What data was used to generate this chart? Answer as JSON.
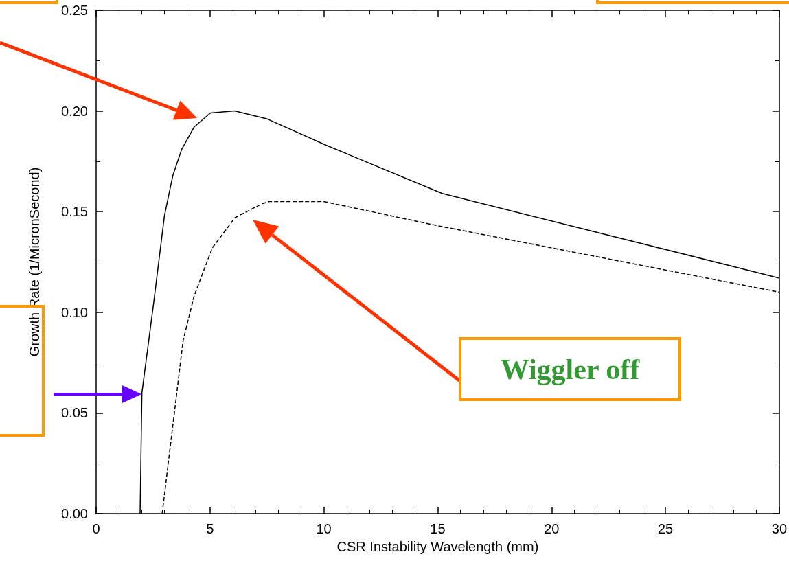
{
  "chart_data": {
    "type": "line",
    "xlabel": "CSR Instability Wavelength (mm)",
    "ylabel": "Growth Rate (1/MicronSecond)",
    "xlim": [
      0,
      30
    ],
    "xticks": [
      0,
      5,
      10,
      15,
      20,
      25,
      30
    ],
    "ylim": [
      0,
      0.25
    ],
    "yticks": [
      {
        "value": 0,
        "label": "0.00"
      },
      {
        "value": 0.05,
        "label": "0.05"
      },
      {
        "value": 0.1,
        "label": "0.10"
      },
      {
        "value": 0.15,
        "label": "0.15"
      },
      {
        "value": 0.2,
        "label": "0.20"
      },
      {
        "value": 0.25,
        "label": "0.25"
      }
    ],
    "grid": false,
    "marker": "none",
    "series": [
      {
        "color": "#000000",
        "line_style": "solid",
        "x": [
          1.93,
          2.01,
          2.53,
          3.0,
          3.37,
          3.76,
          4.3,
          5.02,
          6.08,
          7.52,
          10.1,
          15.2,
          30
        ],
        "values": [
          0,
          0.06,
          0.105,
          0.148,
          0.168,
          0.181,
          0.192,
          0.199,
          0.2,
          0.196,
          0.183,
          0.159,
          0.117
        ]
      },
      {
        "color": "#000000",
        "line_style": "dashed",
        "x": [
          2.9,
          3.82,
          4.3,
          5.1,
          6.1,
          7.3,
          7.6,
          10.0,
          15.0,
          30
        ],
        "values": [
          0,
          0.086,
          0.108,
          0.132,
          0.147,
          0.154,
          0.155,
          0.155,
          0.143,
          0.11
        ]
      }
    ],
    "annotations": [
      "Wiggler off"
    ]
  }
}
